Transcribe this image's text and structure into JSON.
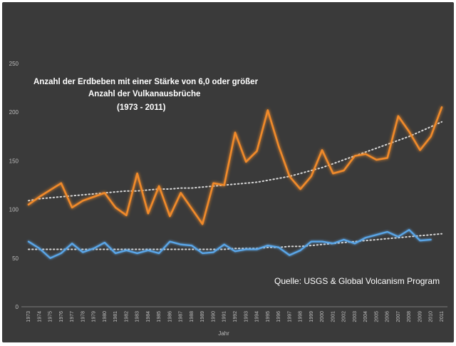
{
  "chart_data": {
    "type": "line",
    "title_lines": [
      "Anzahl der Erdbeben mit einer Stärke von 6,0 oder größer",
      "Anzahl der Vulkanausbrüche",
      "(1973 - 2011)"
    ],
    "source": "Quelle: USGS & Global Volcanism Program",
    "xlabel": "Jahr",
    "ylabel": "",
    "ylim": [
      0,
      250
    ],
    "yticks": [
      0,
      50,
      100,
      150,
      200,
      250
    ],
    "grid": false,
    "x": [
      "1973",
      "1974",
      "1975",
      "1976",
      "1977",
      "1978",
      "1979",
      "1980",
      "1981",
      "1982",
      "1983",
      "1984",
      "1985",
      "1986",
      "1987",
      "1988",
      "1989",
      "1990",
      "1991",
      "1992",
      "1993",
      "1994",
      "1995",
      "1996",
      "1997",
      "1998",
      "1999",
      "2000",
      "2001",
      "2002",
      "2003",
      "2004",
      "2005",
      "2006",
      "2007",
      "2008",
      "2009",
      "2010",
      "2011"
    ],
    "series": [
      {
        "color": "#f08a2c",
        "values": [
          105,
          113,
          120,
          127,
          102,
          109,
          113,
          117,
          102,
          94,
          137,
          96,
          124,
          93,
          117,
          101,
          85,
          127,
          125,
          179,
          149,
          160,
          202,
          165,
          134,
          121,
          134,
          161,
          137,
          140,
          155,
          157,
          151,
          153,
          196,
          180,
          161,
          175,
          205
        ]
      },
      {
        "color": "#5aa6e8",
        "values": [
          67,
          60,
          50,
          55,
          65,
          56,
          60,
          66,
          55,
          58,
          55,
          58,
          55,
          67,
          64,
          63,
          55,
          56,
          64,
          57,
          59,
          59,
          63,
          61,
          53,
          58,
          67,
          67,
          65,
          69,
          65,
          71,
          74,
          77,
          72,
          79,
          68,
          69,
          null
        ]
      }
    ],
    "trendlines": [
      {
        "color": "#d8d8d8",
        "style": "dotted",
        "values": [
          109,
          111,
          112,
          113,
          114,
          115,
          116,
          117,
          118,
          119,
          119,
          120,
          121,
          121,
          122,
          122,
          123,
          124,
          125,
          126,
          127,
          128,
          130,
          132,
          134,
          137,
          140,
          143,
          147,
          151,
          155,
          159,
          163,
          167,
          171,
          175,
          180,
          185,
          190
        ]
      },
      {
        "color": "#d8d8d8",
        "style": "dotted",
        "values": [
          59,
          59,
          59,
          59,
          59,
          59,
          59,
          59,
          59,
          59,
          59,
          59,
          59,
          59,
          59,
          59,
          59,
          59,
          59,
          60,
          60,
          60,
          61,
          61,
          62,
          62,
          63,
          64,
          65,
          66,
          67,
          68,
          69,
          70,
          71,
          72,
          73,
          74,
          75
        ]
      }
    ]
  }
}
